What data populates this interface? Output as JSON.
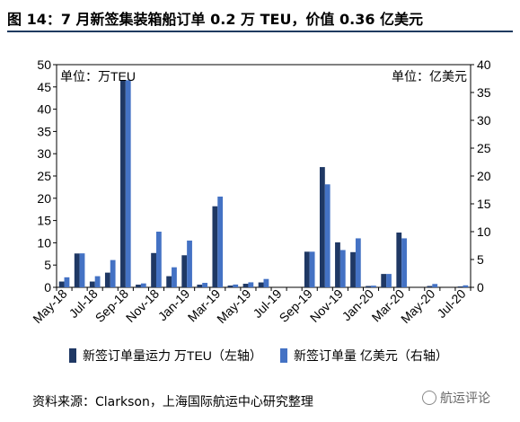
{
  "header": {
    "title": "图 14：7 月新签集装箱船订单 0.2 万 TEU，价值 0.36 亿美元"
  },
  "footer": {
    "source": "资料来源：Clarkson，上海国际航运中心研究整理",
    "watermark": "航运评论"
  },
  "chart_data": {
    "type": "bar",
    "left_axis_note": "单位：万TEU",
    "right_axis_note": "单位：亿美元",
    "y_left": {
      "min": 0,
      "max": 50,
      "ticks": [
        0,
        5,
        10,
        15,
        20,
        25,
        30,
        35,
        40,
        45,
        50
      ]
    },
    "y_right": {
      "min": 0,
      "max": 40,
      "ticks": [
        0,
        5,
        10,
        15,
        20,
        25,
        30,
        35,
        40
      ]
    },
    "categories": [
      "May-18",
      "Jun-18",
      "Jul-18",
      "Aug-18",
      "Sep-18",
      "Oct-18",
      "Nov-18",
      "Dec-18",
      "Jan-19",
      "Feb-19",
      "Mar-19",
      "Apr-19",
      "May-19",
      "Jun-19",
      "Jul-19",
      "Aug-19",
      "Sep-19",
      "Oct-19",
      "Nov-19",
      "Dec-19",
      "Jan-20",
      "Feb-20",
      "Mar-20",
      "Apr-20",
      "May-20",
      "Jun-20",
      "Jul-20"
    ],
    "x_tick_labels": [
      "May-18",
      "Jul-18",
      "Sep-18",
      "Nov-18",
      "Jan-19",
      "Mar-19",
      "May-19",
      "Jul-19",
      "Sep-19",
      "Nov-19",
      "Jan-20",
      "Mar-20",
      "May-20",
      "Jul-20"
    ],
    "series": [
      {
        "name": "新签订单量运力 万TEU（左轴）",
        "axis": "left",
        "color": "#1f3864",
        "values": [
          1.3,
          7.6,
          1.3,
          3.3,
          46.5,
          0.6,
          7.7,
          2.5,
          7.2,
          0.6,
          18.2,
          0.4,
          0.8,
          1.1,
          0,
          0,
          8.0,
          27.0,
          10.1,
          7.9,
          0.3,
          3.0,
          12.3,
          0,
          0.3,
          0,
          0.2
        ]
      },
      {
        "name": "新签订单量 亿美元（右轴）",
        "axis": "right",
        "color": "#4472c4",
        "values": [
          1.8,
          6.1,
          2.0,
          4.9,
          37.2,
          0.7,
          10.0,
          3.6,
          8.4,
          0.8,
          16.3,
          0.5,
          0.9,
          1.5,
          0,
          0,
          6.4,
          18.5,
          6.7,
          8.8,
          0.3,
          2.4,
          8.8,
          0,
          0.6,
          0,
          0.36
        ]
      }
    ]
  }
}
